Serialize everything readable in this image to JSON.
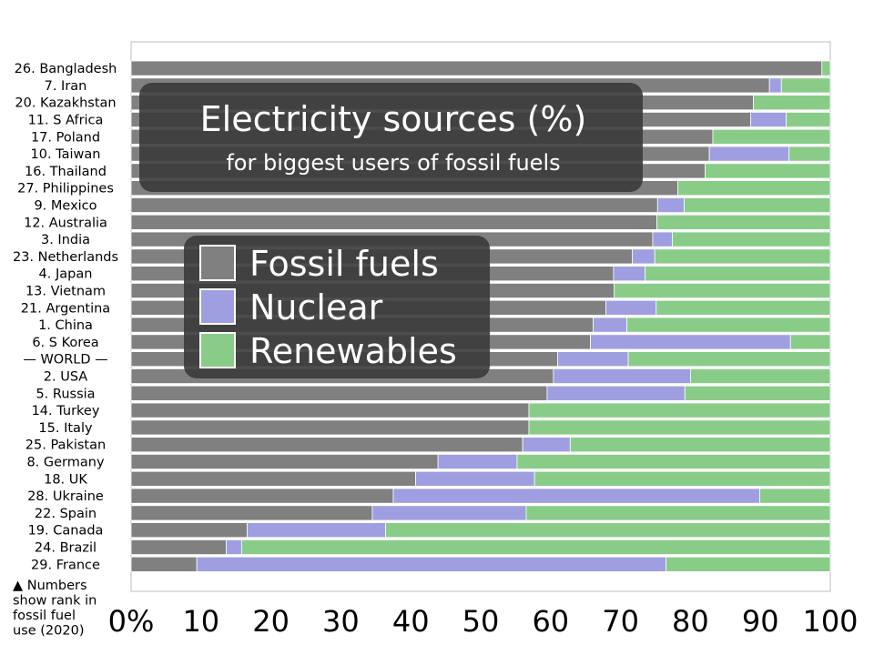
{
  "chart_data": {
    "type": "bar",
    "orientation": "horizontal",
    "stacked": true,
    "title": "Electricity sources (%)",
    "subtitle": "for biggest users of fossil fuels",
    "categories": [
      "26. Bangladesh",
      "7. Iran",
      "20. Kazakhstan",
      "11. S Africa",
      "17. Poland",
      "10. Taiwan",
      "16. Thailand",
      "27. Philippines",
      "9. Mexico",
      "12. Australia",
      "3. India",
      "23. Netherlands",
      "4. Japan",
      "13. Vietnam",
      "21. Argentina",
      "1. China",
      "6. S Korea",
      "— WORLD —",
      "2. USA",
      "5. Russia",
      "14. Turkey",
      "15. Italy",
      "25. Pakistan",
      "8. Germany",
      "18. UK",
      "28. Ukraine",
      "22. Spain",
      "19. Canada",
      "24. Brazil",
      "29. France"
    ],
    "category_colors": [
      "#000000",
      "#000000",
      "#000000",
      "#000000",
      "#000000",
      "#000000",
      "#000000",
      "#000000",
      "#000000",
      "#000000",
      "#dd0000",
      "#000000",
      "#dd0000",
      "#000000",
      "#000000",
      "#dd0000",
      "#000000",
      "#0000dd",
      "#dd0000",
      "#dd0000",
      "#000000",
      "#000000",
      "#000000",
      "#000000",
      "#000000",
      "#000000",
      "#000000",
      "#000000",
      "#000000",
      "#000000"
    ],
    "series": [
      {
        "name": "Fossil fuels",
        "color": "#808080",
        "values": [
          98.8,
          91.3,
          89,
          88.6,
          83.2,
          82.7,
          82.1,
          78.2,
          75.3,
          75.2,
          74.6,
          71.7,
          69,
          69.1,
          67.9,
          66.1,
          65.7,
          61,
          60.4,
          59.5,
          56.9,
          56.9,
          56,
          43.9,
          40.7,
          37.5,
          34.5,
          16.6,
          13.6,
          9.4
        ]
      },
      {
        "name": "Nuclear",
        "color": "#9e9ee0",
        "values": [
          0,
          1.7,
          0,
          5.1,
          0,
          11.4,
          0,
          0,
          3.8,
          0,
          2.8,
          3.2,
          4.5,
          0,
          7.2,
          4.8,
          28.6,
          10.1,
          19.6,
          19.7,
          0,
          0,
          6.8,
          11.3,
          17,
          52.4,
          22,
          19.8,
          2.2,
          67.1
        ]
      },
      {
        "name": "Renewables",
        "color": "#88cc88",
        "values": [
          1.2,
          7,
          11,
          6.3,
          16.8,
          5.9,
          17.9,
          21.8,
          20.9,
          24.8,
          22.6,
          25.1,
          26.5,
          30.9,
          24.9,
          29.1,
          5.7,
          28.9,
          20,
          20.8,
          43.1,
          43.1,
          37.2,
          44.8,
          42.3,
          10.1,
          43.5,
          63.6,
          84.2,
          23.5
        ]
      }
    ],
    "xlim": [
      0,
      100
    ],
    "xticks": [
      "0%",
      "10",
      "20",
      "30",
      "40",
      "50",
      "60",
      "70",
      "80",
      "90",
      "100"
    ],
    "grid": false,
    "legend_placement": "center-left",
    "note": [
      "▲ Numbers",
      "show rank in",
      "fossil fuel",
      "use (2020)"
    ]
  }
}
